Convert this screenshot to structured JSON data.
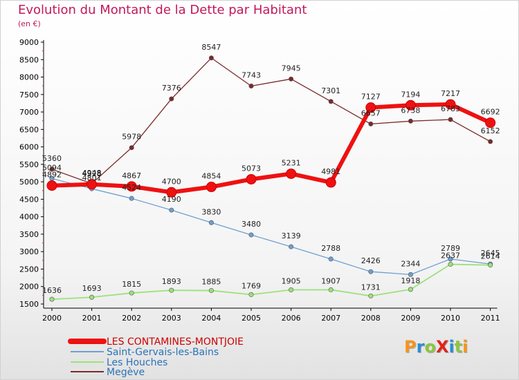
{
  "title": "Evolution du Montant de la Dette par Habitant",
  "subtitle": "(en €)",
  "logo": {
    "text": "ProXiti",
    "letters": [
      "P",
      "r",
      "o",
      "X",
      "i",
      "t",
      "i"
    ],
    "colors": [
      "#f7941d",
      "#2a8dd4",
      "#8cc63f",
      "#e2231a",
      "#2a8dd4",
      "#8cc63f",
      "#f7941d"
    ]
  },
  "chart_data": {
    "type": "line",
    "x": [
      "2000",
      "2001",
      "2002",
      "2003",
      "2004",
      "2005",
      "2006",
      "2007",
      "2008",
      "2009",
      "2010",
      "2011"
    ],
    "ylim": [
      1500,
      9000
    ],
    "yticks": [
      1500,
      2000,
      2500,
      3000,
      3500,
      4000,
      4500,
      5000,
      5500,
      6000,
      6500,
      7000,
      7500,
      8000,
      8500,
      9000
    ],
    "grid": false,
    "legend_placement": "bottom-left",
    "series": [
      {
        "name": "LES CONTAMINES-MONTJOIE",
        "color": "#ee1111",
        "width": 6,
        "marker": 7,
        "values": [
          4892,
          4928,
          4867,
          4700,
          4854,
          5073,
          5231,
          4981,
          7127,
          7194,
          7217,
          6692
        ],
        "labels": [
          "4892",
          "4928",
          "4867",
          "4700",
          "4854",
          "5073",
          "5231",
          "4981",
          "7127",
          "7194",
          "7217",
          "6692"
        ]
      },
      {
        "name": "Saint-Gervais-les-Bains",
        "color": "#6f9fd0",
        "width": 1.3,
        "marker": 3.2,
        "values": [
          5094,
          4801,
          4524,
          4190,
          3830,
          3480,
          3139,
          2788,
          2426,
          2344,
          2789,
          2645
        ],
        "labels": [
          "5094",
          "4801",
          "4524",
          "4190",
          "3830",
          "3480",
          "3139",
          "2788",
          "2426",
          "2344",
          "2789",
          "2645"
        ]
      },
      {
        "name": "Les Houches",
        "color": "#9be27a",
        "width": 1.8,
        "marker": 3.2,
        "values": [
          1636,
          1693,
          1815,
          1893,
          1885,
          1769,
          1905,
          1907,
          1731,
          1918,
          2637,
          2614
        ],
        "labels": [
          "1636",
          "1693",
          "1815",
          "1893",
          "1885",
          "1769",
          "1905",
          "1907",
          "1731",
          "1918",
          "2637",
          "2614"
        ]
      },
      {
        "name": "Megève",
        "color": "#7a2a2a",
        "width": 1.3,
        "marker": 3.2,
        "values": [
          5360,
          4948,
          5978,
          7376,
          8547,
          7743,
          7945,
          7301,
          6657,
          6738,
          6783,
          6152
        ],
        "labels": [
          "5360",
          "4948",
          "5978",
          "7376",
          "8547",
          "7743",
          "7945",
          "7301",
          "6657",
          "6738",
          "6783",
          "6152"
        ]
      }
    ]
  }
}
